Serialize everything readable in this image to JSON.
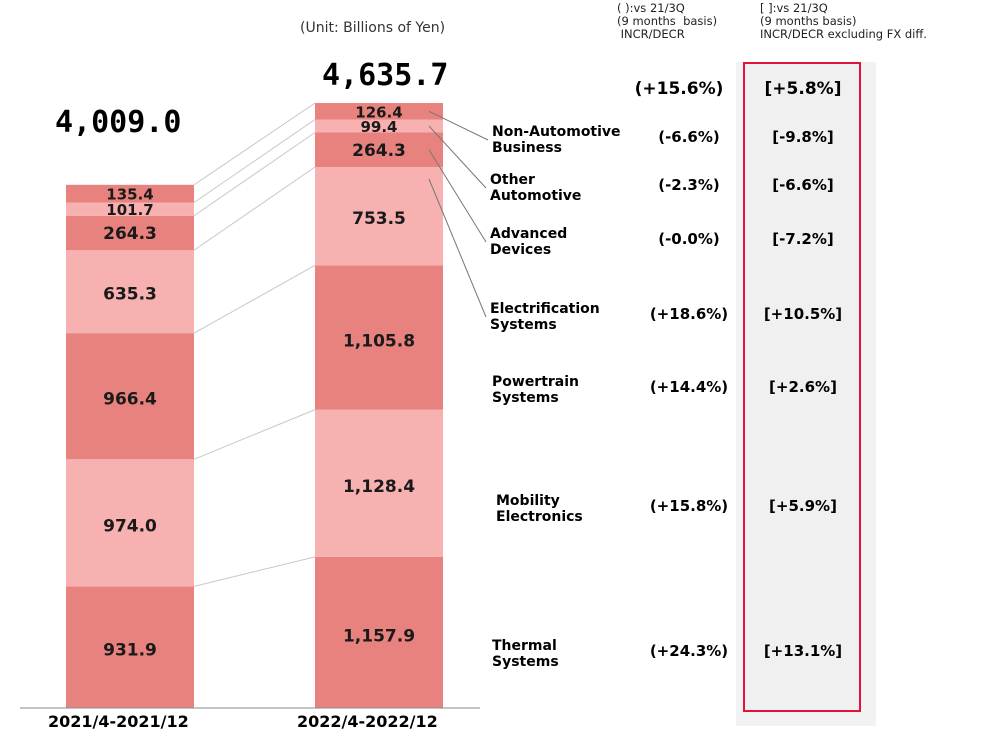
{
  "unit_note": "(Unit: Billions of Yen)",
  "header": {
    "paren_title": "( ):vs 21/3Q\n(9 months  basis)\n INCR/DECR",
    "bracket_title": "[ ]:vs 21/3Q\n(9 months basis)\nINCR/DECR excluding FX diff."
  },
  "colors": {
    "dark": "#e8827e",
    "light": "#f7b1b0",
    "highlight_border": "#e0133a"
  },
  "chart_data": {
    "type": "bar",
    "stacked": true,
    "categories": [
      "2021/4-2021/12",
      "2022/4-2022/12"
    ],
    "totals": [
      "4,009.0",
      "4,635.7"
    ],
    "series": [
      {
        "name": "Thermal Systems",
        "values": [
          931.9,
          1157.9
        ],
        "labels": [
          "931.9",
          "1,157.9"
        ],
        "change": "(+24.3%)",
        "change_ex_fx": "[+13.1%]",
        "shade": "dark"
      },
      {
        "name": "Mobility Electronics",
        "values": [
          974.0,
          1128.4
        ],
        "labels": [
          "974.0",
          "1,128.4"
        ],
        "change": "(+15.8%)",
        "change_ex_fx": "[+5.9%]",
        "shade": "light"
      },
      {
        "name": "Powertrain Systems",
        "values": [
          966.4,
          1105.8
        ],
        "labels": [
          "966.4",
          "1,105.8"
        ],
        "change": "(+14.4%)",
        "change_ex_fx": "[+2.6%]",
        "shade": "dark"
      },
      {
        "name": "Electrification Systems",
        "values": [
          635.3,
          753.5
        ],
        "labels": [
          "635.3",
          "753.5"
        ],
        "change": "(+18.6%)",
        "change_ex_fx": "[+10.5%]",
        "shade": "light"
      },
      {
        "name": "Advanced Devices",
        "values": [
          264.3,
          264.3
        ],
        "labels": [
          "264.3",
          "264.3"
        ],
        "change": "(-0.0%)",
        "change_ex_fx": "[-7.2%]",
        "shade": "dark"
      },
      {
        "name": "Other Automotive",
        "values": [
          101.7,
          99.4
        ],
        "labels": [
          "101.7",
          "99.4"
        ],
        "change": "(-2.3%)",
        "change_ex_fx": "[-6.6%]",
        "shade": "light"
      },
      {
        "name": "Non-Automotive Business",
        "values": [
          135.4,
          126.4
        ],
        "labels": [
          "135.4",
          "126.4"
        ],
        "change": "(-6.6%)",
        "change_ex_fx": "[-9.8%]",
        "shade": "dark"
      }
    ],
    "total_change": "(+15.6%)",
    "total_change_ex_fx": "[+5.8%]"
  },
  "segment_labels": [
    {
      "line1": "Thermal",
      "line2": "Systems"
    },
    {
      "line1": "Mobility",
      "line2": "Electronics"
    },
    {
      "line1": "Powertrain",
      "line2": "Systems"
    },
    {
      "line1": "Electrification",
      "line2": "Systems"
    },
    {
      "line1": "Advanced",
      "line2": "Devices"
    },
    {
      "line1": "Other",
      "line2": "Automotive"
    },
    {
      "line1": "Non-Automotive",
      "line2": "Business"
    }
  ]
}
